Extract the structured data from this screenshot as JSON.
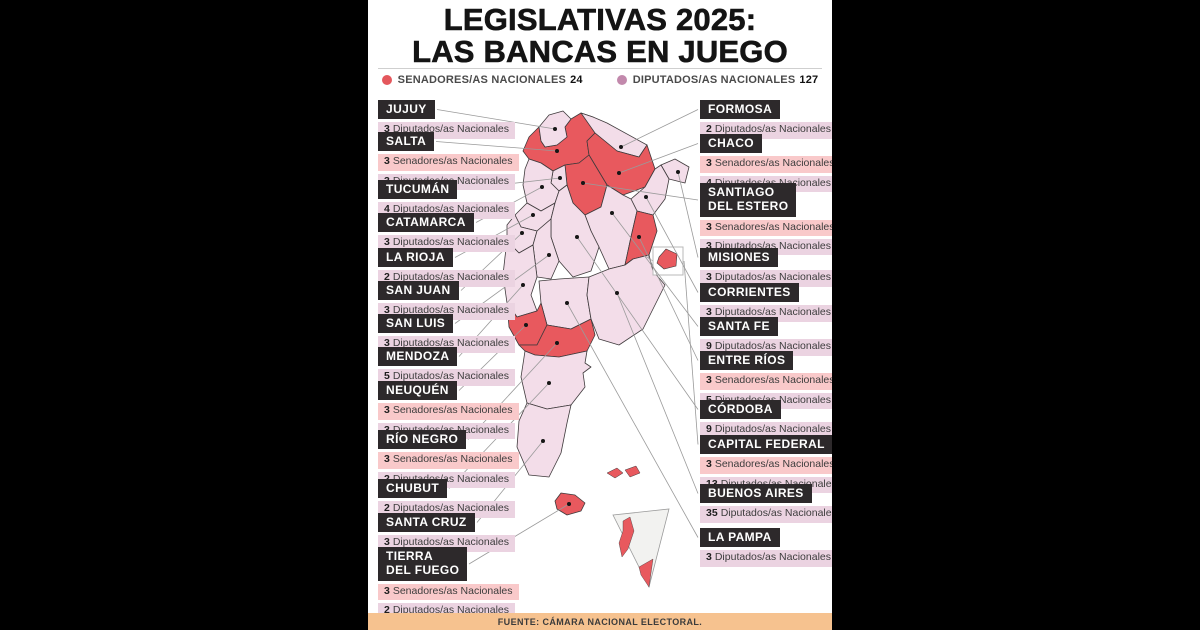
{
  "title": {
    "line1": "LEGISLATIVAS 2025:",
    "line2": "LAS BANCAS EN JUEGO"
  },
  "legend": {
    "items": [
      {
        "id": "senators",
        "label": "SENADORES/AS NACIONALES",
        "count": "24",
        "color": "#e4575c"
      },
      {
        "id": "deputies",
        "label": "DIPUTADOS/AS NACIONALES",
        "count": "127",
        "color": "#c289ac"
      }
    ]
  },
  "footer": {
    "source": "FUENTE: CÁMARA NACIONAL ELECTORAL."
  },
  "colors": {
    "canvas": "#000000",
    "panel": "#ffffff",
    "header_bar": "#2d292b",
    "senator_row": "#f9c9ca",
    "deputy_row": "#ebd3e1",
    "map_default": "#f3dde9",
    "map_senate": "#e8595e",
    "antarctica": "#f2f2f0",
    "footer_bar": "#f6c28f",
    "connector": "#9a9a9a",
    "map_border": "#3f3a3c",
    "dot": "#161616"
  },
  "provinces": [
    {
      "id": "jujuy",
      "name": "JUJUY",
      "column": "left",
      "senate_election": false,
      "seats": [
        {
          "type": "deputies",
          "count": "3",
          "label": "Diputados/as Nacionales"
        }
      ]
    },
    {
      "id": "salta",
      "name": "SALTA",
      "column": "left",
      "senate_election": true,
      "seats": [
        {
          "type": "senators",
          "count": "3",
          "label": "Senadores/as Nacionales"
        },
        {
          "type": "deputies",
          "count": "3",
          "label": "Diputados/as Nacionales"
        }
      ]
    },
    {
      "id": "tucuman",
      "name": "TUCUMÁN",
      "column": "left",
      "senate_election": false,
      "seats": [
        {
          "type": "deputies",
          "count": "4",
          "label": "Diputados/as Nacionales"
        }
      ]
    },
    {
      "id": "catamarca",
      "name": "CATAMARCA",
      "column": "left",
      "senate_election": false,
      "seats": [
        {
          "type": "deputies",
          "count": "3",
          "label": "Diputados/as Nacionales"
        }
      ]
    },
    {
      "id": "larioja",
      "name": "LA RIOJA",
      "column": "left",
      "senate_election": false,
      "seats": [
        {
          "type": "deputies",
          "count": "2",
          "label": "Diputados/as Nacionales"
        }
      ]
    },
    {
      "id": "sanjuan",
      "name": "SAN JUAN",
      "column": "left",
      "senate_election": false,
      "seats": [
        {
          "type": "deputies",
          "count": "3",
          "label": "Diputados/as Nacionales"
        }
      ]
    },
    {
      "id": "sanluis",
      "name": "SAN LUIS",
      "column": "left",
      "senate_election": false,
      "seats": [
        {
          "type": "deputies",
          "count": "3",
          "label": "Diputados/as Nacionales"
        }
      ]
    },
    {
      "id": "mendoza",
      "name": "MENDOZA",
      "column": "left",
      "senate_election": false,
      "seats": [
        {
          "type": "deputies",
          "count": "5",
          "label": "Diputados/as Nacionales"
        }
      ]
    },
    {
      "id": "neuquen",
      "name": "NEUQUÉN",
      "column": "left",
      "senate_election": true,
      "seats": [
        {
          "type": "senators",
          "count": "3",
          "label": "Senadores/as Nacionales"
        },
        {
          "type": "deputies",
          "count": "3",
          "label": "Diputados/as Nacionales"
        }
      ]
    },
    {
      "id": "rionegro",
      "name": "RÍO NEGRO",
      "column": "left",
      "senate_election": true,
      "seats": [
        {
          "type": "senators",
          "count": "3",
          "label": "Senadores/as Nacionales"
        },
        {
          "type": "deputies",
          "count": "2",
          "label": "Diputados/as Nacionales"
        }
      ]
    },
    {
      "id": "chubut",
      "name": "CHUBUT",
      "column": "left",
      "senate_election": false,
      "seats": [
        {
          "type": "deputies",
          "count": "2",
          "label": "Diputados/as Nacionales"
        }
      ]
    },
    {
      "id": "santacruz",
      "name": "SANTA CRUZ",
      "column": "left",
      "senate_election": false,
      "seats": [
        {
          "type": "deputies",
          "count": "3",
          "label": "Diputados/as Nacionales"
        }
      ]
    },
    {
      "id": "tdf",
      "name": "TIERRA\nDEL FUEGO",
      "column": "left",
      "senate_election": true,
      "seats": [
        {
          "type": "senators",
          "count": "3",
          "label": "Senadores/as Nacionales"
        },
        {
          "type": "deputies",
          "count": "2",
          "label": "Diputados/as Nacionales"
        }
      ]
    },
    {
      "id": "formosa",
      "name": "FORMOSA",
      "column": "right",
      "senate_election": false,
      "seats": [
        {
          "type": "deputies",
          "count": "2",
          "label": "Diputados/as Nacionales"
        }
      ]
    },
    {
      "id": "chaco",
      "name": "CHACO",
      "column": "right",
      "senate_election": true,
      "seats": [
        {
          "type": "senators",
          "count": "3",
          "label": "Senadores/as Nacionales"
        },
        {
          "type": "deputies",
          "count": "4",
          "label": "Diputados/as Nacionales"
        }
      ]
    },
    {
      "id": "santiago",
      "name": "SANTIAGO\nDEL ESTERO",
      "column": "right",
      "senate_election": true,
      "seats": [
        {
          "type": "senators",
          "count": "3",
          "label": "Senadores/as Nacionales"
        },
        {
          "type": "deputies",
          "count": "3",
          "label": "Diputados/as Nacionales"
        }
      ]
    },
    {
      "id": "misiones",
      "name": "MISIONES",
      "column": "right",
      "senate_election": false,
      "seats": [
        {
          "type": "deputies",
          "count": "3",
          "label": "Diputados/as Nacionales"
        }
      ]
    },
    {
      "id": "corrientes",
      "name": "CORRIENTES",
      "column": "right",
      "senate_election": false,
      "seats": [
        {
          "type": "deputies",
          "count": "3",
          "label": "Diputados/as Nacionales"
        }
      ]
    },
    {
      "id": "santafe",
      "name": "SANTA FE",
      "column": "right",
      "senate_election": false,
      "seats": [
        {
          "type": "deputies",
          "count": "9",
          "label": "Diputados/as Nacionales"
        }
      ]
    },
    {
      "id": "entrerios",
      "name": "ENTRE RÍOS",
      "column": "right",
      "senate_election": true,
      "seats": [
        {
          "type": "senators",
          "count": "3",
          "label": "Senadores/as Nacionales"
        },
        {
          "type": "deputies",
          "count": "5",
          "label": "Diputados/as Nacionales"
        }
      ]
    },
    {
      "id": "cordoba",
      "name": "CÓRDOBA",
      "column": "right",
      "senate_election": false,
      "seats": [
        {
          "type": "deputies",
          "count": "9",
          "label": "Diputados/as Nacionales"
        }
      ]
    },
    {
      "id": "caba",
      "name": "CAPITAL FEDERAL",
      "column": "right",
      "senate_election": true,
      "seats": [
        {
          "type": "senators",
          "count": "3",
          "label": "Senadores/as Nacionales"
        },
        {
          "type": "deputies",
          "count": "13",
          "label": "Diputados/as Nacionales"
        }
      ]
    },
    {
      "id": "bsas",
      "name": "BUENOS AIRES",
      "column": "right",
      "senate_election": false,
      "seats": [
        {
          "type": "deputies",
          "count": "35",
          "label": "Diputados/as Nacionales"
        }
      ]
    },
    {
      "id": "lapampa",
      "name": "LA PAMPA",
      "column": "right",
      "senate_election": false,
      "seats": [
        {
          "type": "deputies",
          "count": "3",
          "label": "Diputados/as Nacionales"
        }
      ]
    }
  ]
}
